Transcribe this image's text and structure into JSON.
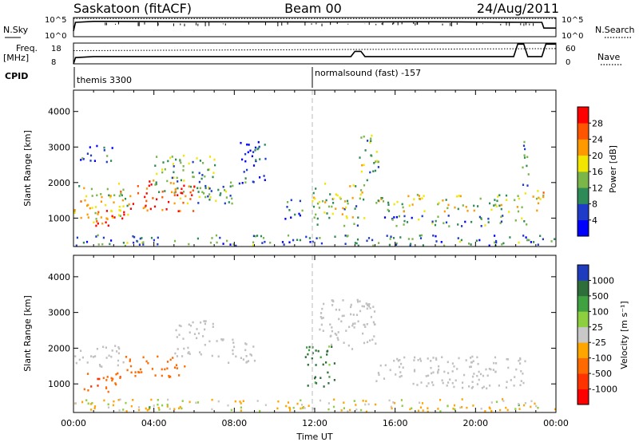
{
  "header": {
    "station": "Saskatoon (fitACF)",
    "beam": "Beam 00",
    "date": "24/Aug/2011"
  },
  "strip": {
    "nsky_label": "N.Sky",
    "nsky_ticks": [
      "10^5",
      "10^0"
    ],
    "nsearch_label": "N.Search",
    "nsearch_ticks": [
      "10^5",
      "10^0"
    ],
    "freq_label": "Freq.",
    "freq_unit": "[MHz]",
    "freq_ticks": [
      "18",
      "8"
    ],
    "nave_label": "Nave",
    "nave_ticks": [
      "60",
      "0"
    ],
    "cpid_label": "CPID",
    "cpid_segments": [
      {
        "name": "themis 3300",
        "start_hour": 0
      },
      {
        "name": "normalsound (fast) -157",
        "start_hour": 12
      }
    ]
  },
  "colors": {
    "power": [
      "#0000ff",
      "#1e3cc8",
      "#2e8b57",
      "#7ab648",
      "#f2e600",
      "#ff9900",
      "#ff5500",
      "#ff0000"
    ],
    "velocity": [
      "#1f3cbf",
      "#2e6e3a",
      "#3fa13f",
      "#8dcf3f",
      "#c8c8c8",
      "#ffa500",
      "#ff6a00",
      "#ff3300",
      "#ff0000"
    ],
    "ground_scatter": "#c0c0c0"
  },
  "chart_data": [
    {
      "type": "heatmap",
      "name": "Power panel",
      "ylabel": "Slant Range [km]",
      "x_range_hours": [
        0,
        24
      ],
      "yticks": [
        "1000",
        "2000",
        "3000",
        "4000"
      ],
      "ylim": [
        200,
        4600
      ],
      "colorbar": {
        "label": "Power [dB]",
        "ticks": [
          "28",
          "24",
          "20",
          "16",
          "12",
          "8",
          "4"
        ],
        "range": [
          0,
          32
        ]
      },
      "regions": [
        {
          "t0": 0.0,
          "t1": 2.8,
          "r0": 900,
          "r1": 2000,
          "level": 0.55
        },
        {
          "t0": 2.8,
          "t1": 6.0,
          "r0": 1200,
          "r1": 2100,
          "level": 0.82
        },
        {
          "t0": 1.0,
          "t1": 2.5,
          "r0": 800,
          "r1": 1300,
          "level": 0.9
        },
        {
          "t0": 0.3,
          "t1": 2.0,
          "r0": 2600,
          "r1": 3100,
          "level": 0.25
        },
        {
          "t0": 4.0,
          "t1": 7.0,
          "r0": 1600,
          "r1": 2800,
          "level": 0.4
        },
        {
          "t0": 6.0,
          "t1": 8.0,
          "r0": 1400,
          "r1": 2100,
          "level": 0.3
        },
        {
          "t0": 8.2,
          "t1": 9.6,
          "r0": 2000,
          "r1": 3300,
          "level": 0.18
        },
        {
          "t0": 10.5,
          "t1": 11.5,
          "r0": 1000,
          "r1": 1600,
          "level": 0.2
        },
        {
          "t0": 11.8,
          "t1": 14.5,
          "r0": 800,
          "r1": 2000,
          "level": 0.45
        },
        {
          "t0": 14.2,
          "t1": 15.2,
          "r0": 2000,
          "r1": 3400,
          "level": 0.45
        },
        {
          "t0": 15.0,
          "t1": 22.5,
          "r0": 1200,
          "r1": 1700,
          "level": 0.5
        },
        {
          "t0": 15.0,
          "t1": 22.5,
          "r0": 800,
          "r1": 1100,
          "level": 0.3
        },
        {
          "t0": 22.3,
          "t1": 22.6,
          "r0": 900,
          "r1": 3300,
          "level": 0.35
        },
        {
          "t0": 22.6,
          "t1": 23.5,
          "r0": 1200,
          "r1": 1800,
          "level": 0.6
        },
        {
          "t0": 0.0,
          "t1": 24.0,
          "r0": 250,
          "r1": 550,
          "level": 0.3
        }
      ]
    },
    {
      "type": "heatmap",
      "name": "Velocity panel",
      "ylabel": "Slant Range [km]",
      "xlabel": "Time UT",
      "x_range_hours": [
        0,
        24
      ],
      "xticks": [
        "00:00",
        "04:00",
        "08:00",
        "12:00",
        "16:00",
        "20:00",
        "00:00"
      ],
      "yticks": [
        "1000",
        "2000",
        "3000",
        "4000"
      ],
      "ylim": [
        200,
        4600
      ],
      "colorbar": {
        "label": "Velocity [m s⁻¹]",
        "ticks": [
          "1000",
          "500",
          "100",
          "25",
          "-25",
          "-100",
          "-500",
          "-1000"
        ],
        "range": [
          -1000,
          1000
        ]
      },
      "regions": [
        {
          "t0": 0.0,
          "t1": 2.5,
          "r0": 1500,
          "r1": 2100,
          "value": 0,
          "ground": true
        },
        {
          "t0": 0.5,
          "t1": 2.5,
          "r0": 800,
          "r1": 1400,
          "value": -500
        },
        {
          "t0": 2.5,
          "t1": 5.5,
          "r0": 1200,
          "r1": 1800,
          "value": -450
        },
        {
          "t0": 5.0,
          "t1": 7.0,
          "r0": 1800,
          "r1": 2800,
          "value": 0,
          "ground": true
        },
        {
          "t0": 7.0,
          "t1": 9.0,
          "r0": 1600,
          "r1": 2300,
          "value": 0,
          "ground": true
        },
        {
          "t0": 11.5,
          "t1": 13.0,
          "r0": 900,
          "r1": 2100,
          "value": 150
        },
        {
          "t0": 12.0,
          "t1": 15.0,
          "r0": 2000,
          "r1": 3400,
          "value": 0,
          "ground": true
        },
        {
          "t0": 15.0,
          "t1": 22.5,
          "r0": 900,
          "r1": 1800,
          "value": 0,
          "ground": true
        },
        {
          "t0": 0.0,
          "t1": 24.0,
          "r0": 250,
          "r1": 600,
          "value": -120
        }
      ]
    },
    {
      "type": "line",
      "name": "N.Sky and N.Search strip",
      "x_range_hours": [
        0,
        24
      ],
      "series": [
        {
          "name": "N.Sky",
          "x": [
            0,
            0.1,
            1,
            6,
            12,
            18,
            23.3,
            23.4,
            24
          ],
          "y": [
            0.3,
            0.75,
            0.8,
            0.78,
            0.77,
            0.78,
            0.75,
            0.45,
            0.45
          ]
        },
        {
          "name": "N.Search",
          "x": [
            0,
            24
          ],
          "y": [
            0.95,
            0.95
          ]
        }
      ]
    },
    {
      "type": "line",
      "name": "Freq and Nave strip",
      "x_range_hours": [
        0,
        24
      ],
      "series": [
        {
          "name": "Freq.",
          "x": [
            0,
            0.1,
            1,
            12,
            13.8,
            14.0,
            14.3,
            14.5,
            21.9,
            22.1,
            22.4,
            22.6,
            23.3,
            23.5,
            24
          ],
          "y": [
            8,
            11,
            11.5,
            11.5,
            11.5,
            14,
            14,
            11.5,
            11.5,
            17.5,
            17.5,
            11.5,
            11.5,
            17.5,
            17.5
          ]
        },
        {
          "name": "Nave",
          "x": [
            0,
            24
          ],
          "y": [
            38,
            44
          ]
        }
      ]
    }
  ]
}
